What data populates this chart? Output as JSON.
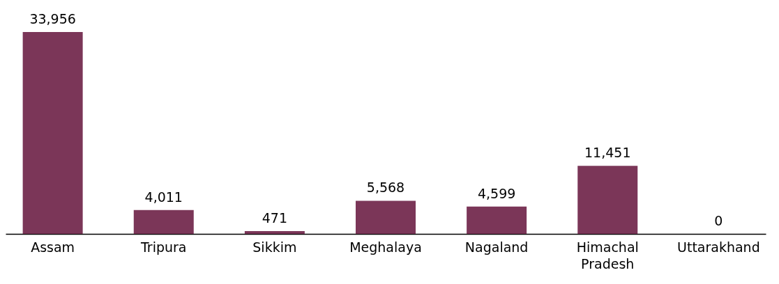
{
  "chart_data": {
    "type": "bar",
    "categories": [
      "Assam",
      "Tripura",
      "Sikkim",
      "Meghalaya",
      "Nagaland",
      "Himachal Pradesh",
      "Uttarakhand"
    ],
    "values": [
      33956,
      4011,
      471,
      5568,
      4599,
      11451,
      0
    ],
    "value_labels": [
      "33,956",
      "4,011",
      "471",
      "5,568",
      "4,599",
      "11,451",
      "0"
    ],
    "color": "#7b3658"
  }
}
